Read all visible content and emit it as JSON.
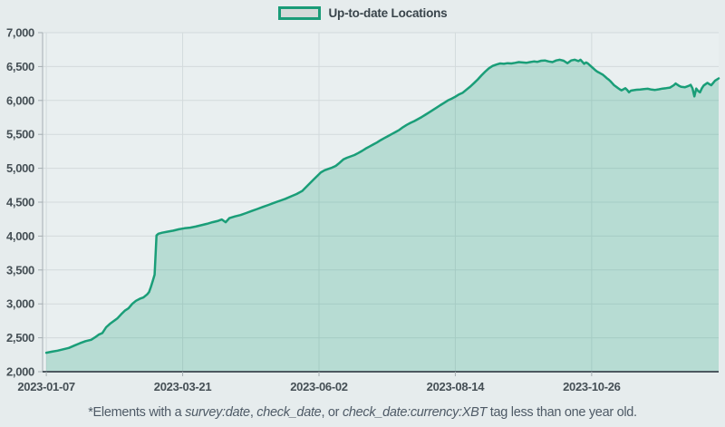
{
  "page": {
    "background": "#e6eced"
  },
  "legend": {
    "label": "Up-to-date Locations",
    "swatch_border": "#1a9c78",
    "swatch_fill": "#d5dad9"
  },
  "footnote": {
    "prefix": "*Elements with a ",
    "tag1": "survey:date",
    "sep1": ", ",
    "tag2": "check_date",
    "sep2": ", or ",
    "tag3": "check_date:currency:XBT",
    "suffix": " tag less than one year old."
  },
  "chart_data": {
    "type": "area",
    "title": "",
    "xlabel": "",
    "ylabel": "",
    "grid": true,
    "legend_position": "top-center",
    "x_domain_start": "2023-01-05",
    "x_domain_days": 362,
    "x_ticks": [
      {
        "day": 2,
        "label": "2023-01-07"
      },
      {
        "day": 75,
        "label": "2023-03-21"
      },
      {
        "day": 148,
        "label": "2023-06-02"
      },
      {
        "day": 221,
        "label": "2023-08-14"
      },
      {
        "day": 294,
        "label": "2023-10-26"
      }
    ],
    "y_min": 2000,
    "y_max": 7000,
    "y_tick_step": 500,
    "colors": {
      "plot_bg": "#e9eff0",
      "grid": "#d3dadc",
      "spine": "#a5aeb2",
      "axis": "#4d5860",
      "label": "#454f55"
    },
    "series": [
      {
        "name": "Up-to-date Locations",
        "color": "#1a9e78",
        "fill": "rgba(26,158,120,0.24)",
        "points": [
          [
            2,
            2280
          ],
          [
            5,
            2295
          ],
          [
            8,
            2310
          ],
          [
            11,
            2330
          ],
          [
            14,
            2350
          ],
          [
            17,
            2385
          ],
          [
            20,
            2420
          ],
          [
            23,
            2450
          ],
          [
            26,
            2470
          ],
          [
            28,
            2505
          ],
          [
            30,
            2545
          ],
          [
            32,
            2570
          ],
          [
            34,
            2655
          ],
          [
            36,
            2705
          ],
          [
            38,
            2745
          ],
          [
            40,
            2785
          ],
          [
            42,
            2845
          ],
          [
            44,
            2900
          ],
          [
            46,
            2935
          ],
          [
            48,
            3000
          ],
          [
            50,
            3045
          ],
          [
            52,
            3075
          ],
          [
            54,
            3095
          ],
          [
            56,
            3140
          ],
          [
            57,
            3175
          ],
          [
            58,
            3250
          ],
          [
            59,
            3340
          ],
          [
            60,
            3430
          ],
          [
            61,
            4010
          ],
          [
            62,
            4035
          ],
          [
            64,
            4050
          ],
          [
            67,
            4065
          ],
          [
            70,
            4080
          ],
          [
            73,
            4100
          ],
          [
            76,
            4115
          ],
          [
            79,
            4125
          ],
          [
            82,
            4140
          ],
          [
            85,
            4160
          ],
          [
            88,
            4180
          ],
          [
            91,
            4205
          ],
          [
            94,
            4225
          ],
          [
            96,
            4245
          ],
          [
            98,
            4205
          ],
          [
            100,
            4265
          ],
          [
            103,
            4290
          ],
          [
            106,
            4310
          ],
          [
            109,
            4340
          ],
          [
            112,
            4370
          ],
          [
            115,
            4400
          ],
          [
            118,
            4430
          ],
          [
            121,
            4460
          ],
          [
            124,
            4490
          ],
          [
            127,
            4520
          ],
          [
            130,
            4550
          ],
          [
            133,
            4585
          ],
          [
            136,
            4620
          ],
          [
            139,
            4665
          ],
          [
            141,
            4720
          ],
          [
            143,
            4775
          ],
          [
            145,
            4830
          ],
          [
            147,
            4885
          ],
          [
            149,
            4940
          ],
          [
            151,
            4970
          ],
          [
            153,
            4990
          ],
          [
            155,
            5010
          ],
          [
            157,
            5035
          ],
          [
            159,
            5080
          ],
          [
            161,
            5130
          ],
          [
            163,
            5155
          ],
          [
            165,
            5175
          ],
          [
            167,
            5195
          ],
          [
            169,
            5225
          ],
          [
            171,
            5255
          ],
          [
            173,
            5290
          ],
          [
            175,
            5320
          ],
          [
            177,
            5350
          ],
          [
            179,
            5380
          ],
          [
            181,
            5415
          ],
          [
            183,
            5445
          ],
          [
            185,
            5475
          ],
          [
            187,
            5505
          ],
          [
            189,
            5535
          ],
          [
            191,
            5565
          ],
          [
            193,
            5605
          ],
          [
            195,
            5640
          ],
          [
            197,
            5670
          ],
          [
            199,
            5695
          ],
          [
            201,
            5725
          ],
          [
            203,
            5755
          ],
          [
            205,
            5790
          ],
          [
            207,
            5825
          ],
          [
            209,
            5860
          ],
          [
            211,
            5895
          ],
          [
            213,
            5930
          ],
          [
            215,
            5965
          ],
          [
            217,
            6000
          ],
          [
            219,
            6025
          ],
          [
            221,
            6055
          ],
          [
            223,
            6090
          ],
          [
            225,
            6115
          ],
          [
            227,
            6160
          ],
          [
            229,
            6205
          ],
          [
            231,
            6255
          ],
          [
            233,
            6310
          ],
          [
            235,
            6370
          ],
          [
            237,
            6425
          ],
          [
            239,
            6475
          ],
          [
            241,
            6510
          ],
          [
            243,
            6530
          ],
          [
            245,
            6545
          ],
          [
            247,
            6540
          ],
          [
            249,
            6550
          ],
          [
            251,
            6545
          ],
          [
            253,
            6555
          ],
          [
            255,
            6565
          ],
          [
            257,
            6560
          ],
          [
            259,
            6555
          ],
          [
            261,
            6565
          ],
          [
            263,
            6575
          ],
          [
            265,
            6570
          ],
          [
            267,
            6585
          ],
          [
            269,
            6590
          ],
          [
            271,
            6575
          ],
          [
            273,
            6565
          ],
          [
            275,
            6590
          ],
          [
            277,
            6600
          ],
          [
            279,
            6585
          ],
          [
            281,
            6550
          ],
          [
            283,
            6590
          ],
          [
            285,
            6600
          ],
          [
            287,
            6580
          ],
          [
            288,
            6600
          ],
          [
            289,
            6570
          ],
          [
            290,
            6540
          ],
          [
            291,
            6560
          ],
          [
            292,
            6545
          ],
          [
            293,
            6520
          ],
          [
            294,
            6495
          ],
          [
            295,
            6470
          ],
          [
            296,
            6445
          ],
          [
            297,
            6425
          ],
          [
            298,
            6410
          ],
          [
            299,
            6395
          ],
          [
            300,
            6380
          ],
          [
            301,
            6355
          ],
          [
            302,
            6330
          ],
          [
            303,
            6310
          ],
          [
            304,
            6285
          ],
          [
            305,
            6255
          ],
          [
            306,
            6225
          ],
          [
            307,
            6205
          ],
          [
            308,
            6185
          ],
          [
            309,
            6165
          ],
          [
            310,
            6150
          ],
          [
            311,
            6165
          ],
          [
            312,
            6180
          ],
          [
            313,
            6155
          ],
          [
            314,
            6120
          ],
          [
            315,
            6145
          ],
          [
            316,
            6150
          ],
          [
            318,
            6158
          ],
          [
            320,
            6162
          ],
          [
            322,
            6168
          ],
          [
            324,
            6172
          ],
          [
            326,
            6160
          ],
          [
            328,
            6155
          ],
          [
            330,
            6165
          ],
          [
            332,
            6175
          ],
          [
            334,
            6182
          ],
          [
            336,
            6190
          ],
          [
            338,
            6225
          ],
          [
            339,
            6250
          ],
          [
            340,
            6230
          ],
          [
            341,
            6212
          ],
          [
            342,
            6200
          ],
          [
            344,
            6195
          ],
          [
            346,
            6215
          ],
          [
            347,
            6230
          ],
          [
            348,
            6180
          ],
          [
            349,
            6060
          ],
          [
            350,
            6175
          ],
          [
            351,
            6140
          ],
          [
            352,
            6120
          ],
          [
            353,
            6180
          ],
          [
            354,
            6220
          ],
          [
            355,
            6240
          ],
          [
            356,
            6260
          ],
          [
            357,
            6240
          ],
          [
            358,
            6225
          ],
          [
            359,
            6255
          ],
          [
            360,
            6290
          ],
          [
            362,
            6325
          ]
        ]
      }
    ]
  }
}
